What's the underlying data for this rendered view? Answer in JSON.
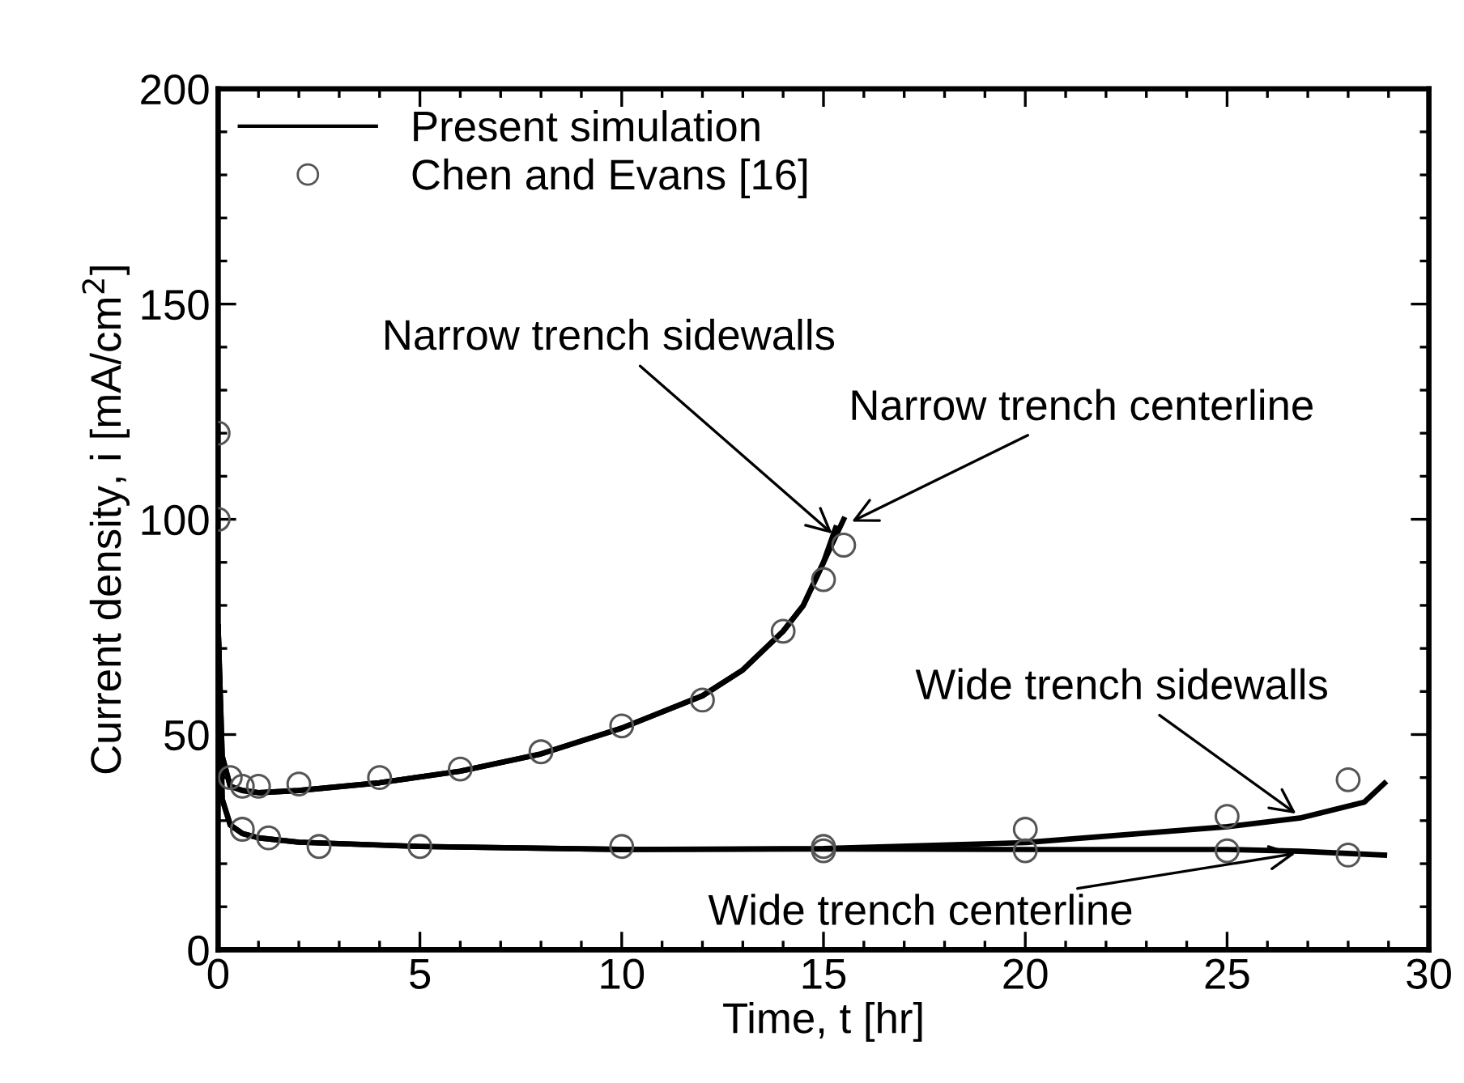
{
  "chart_data": {
    "type": "line",
    "xlabel": "Time, t [hr]",
    "ylabel": "Current density, i [mA/cm$^{2}$]",
    "xlim": [
      0,
      30
    ],
    "xticks": [
      0,
      5,
      10,
      15,
      20,
      25,
      30
    ],
    "ylim": [
      0,
      200
    ],
    "yticks": [
      0,
      50,
      100,
      150,
      200
    ],
    "grid": false,
    "legend": "top left",
    "line_style": "solid",
    "series": [
      {
        "name": "Present simulation",
        "color": "#000000",
        "marker": "none",
        "x": [
          0,
          0.1,
          0.3,
          0.6,
          1,
          2,
          4,
          6,
          8,
          10,
          12,
          13,
          14,
          14.5,
          15,
          15.3,
          15.5
        ],
        "values": [
          75,
          45,
          38,
          37,
          36.5,
          37,
          38.8,
          41.5,
          45.5,
          51.5,
          59,
          65,
          74,
          80,
          90,
          96,
          100
        ]
      },
      {
        "color": "#000000",
        "marker": "none",
        "x": [
          0,
          0.1,
          0.3,
          0.6,
          1,
          2,
          4,
          6,
          8,
          10,
          12,
          13,
          14,
          14.5,
          15,
          15.3
        ],
        "values": [
          75,
          45,
          38,
          37,
          36.5,
          37,
          38.8,
          41.5,
          45.5,
          51.5,
          59,
          65,
          74,
          80,
          90,
          98
        ]
      },
      {
        "color": "#000000",
        "marker": "none",
        "x": [
          0,
          0.1,
          0.3,
          0.6,
          1,
          2,
          5,
          10,
          15,
          20,
          25,
          26.8,
          28.4,
          28.9
        ],
        "values": [
          75,
          35,
          29,
          27,
          26,
          25,
          24,
          23.3,
          23.5,
          24.9,
          28.6,
          30.6,
          34.3,
          38.7
        ]
      },
      {
        "color": "#000000",
        "marker": "none",
        "x": [
          0,
          0.1,
          0.3,
          0.6,
          1,
          2,
          5,
          10,
          15,
          20,
          25,
          26.8,
          28.9
        ],
        "values": [
          75,
          35,
          29,
          27,
          26,
          25,
          24,
          23.3,
          23.4,
          23.3,
          23.3,
          22.9,
          22.0
        ]
      },
      {
        "name": "Chen and Evans [16]",
        "type": "scatter",
        "color": "#555555",
        "marker": "circle",
        "x": [
          0,
          0,
          0.3,
          0.6,
          1,
          2,
          4,
          6,
          8,
          10,
          12,
          14,
          15,
          15.5,
          0.6,
          1.25,
          2.5,
          5,
          10,
          15,
          15,
          20,
          20,
          25,
          25,
          28,
          28
        ],
        "values": [
          120,
          100,
          40,
          38,
          38,
          38.5,
          40,
          42,
          46,
          52,
          58,
          74,
          86,
          94,
          28,
          26,
          24,
          24,
          24,
          24,
          23,
          28,
          23,
          31,
          23,
          39.5,
          22
        ]
      }
    ],
    "annotations": [
      {
        "text": "Narrow trench sidewalls",
        "x": 15.3,
        "y": 96
      },
      {
        "text": "Narrow trench centerline",
        "x": 15.6,
        "y": 99
      },
      {
        "text": "Wide trench sidewalls",
        "x": 26.8,
        "y": 31
      },
      {
        "text": "Wide trench centerline",
        "x": 26.8,
        "y": 22.5
      }
    ]
  }
}
